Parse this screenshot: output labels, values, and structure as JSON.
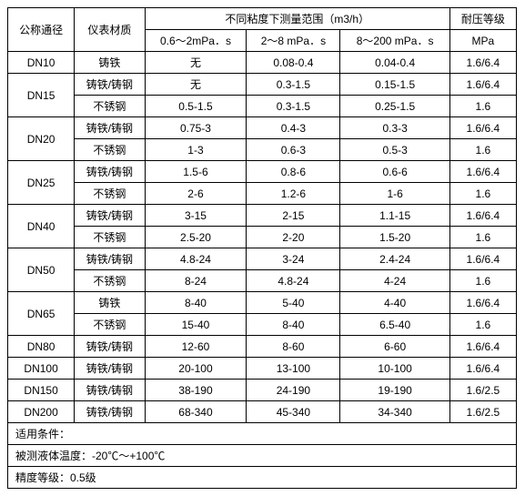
{
  "headers": {
    "col1": "公称通径",
    "col2": "仪表材质",
    "col3_group": "不同粘度下测量范围（m3/h）",
    "col3a": "0.6～2mPa．s",
    "col3b": "2～8 mPa．s",
    "col3c": "8～200 mPa．s",
    "col4": "耐压等级",
    "col4_unit": "MPa"
  },
  "rows": [
    {
      "dn": "DN10",
      "rowspan": 1,
      "mat": "铸铁",
      "v1": "无",
      "v2": "0.08-0.4",
      "v3": "0.04-0.4",
      "p": "1.6/6.4"
    },
    {
      "dn": "DN15",
      "rowspan": 2,
      "mat": "铸铁/铸钢",
      "v1": "无",
      "v2": "0.3-1.5",
      "v3": "0.15-1.5",
      "p": "1.6/6.4"
    },
    {
      "dn": null,
      "mat": "不锈钢",
      "v1": "0.5-1.5",
      "v2": "0.3-1.5",
      "v3": "0.25-1.5",
      "p": "1.6"
    },
    {
      "dn": "DN20",
      "rowspan": 2,
      "mat": "铸铁/铸钢",
      "v1": "0.75-3",
      "v2": "0.4-3",
      "v3": "0.3-3",
      "p": "1.6/6.4"
    },
    {
      "dn": null,
      "mat": "不锈钢",
      "v1": "1-3",
      "v2": "0.6-3",
      "v3": "0.5-3",
      "p": "1.6"
    },
    {
      "dn": "DN25",
      "rowspan": 2,
      "mat": "铸铁/铸钢",
      "v1": "1.5-6",
      "v2": "0.8-6",
      "v3": "0.6-6",
      "p": "1.6/6.4"
    },
    {
      "dn": null,
      "mat": "不锈钢",
      "v1": "2-6",
      "v2": "1.2-6",
      "v3": "1-6",
      "p": "1.6"
    },
    {
      "dn": "DN40",
      "rowspan": 2,
      "mat": "铸铁/铸钢",
      "v1": "3-15",
      "v2": "2-15",
      "v3": "1.1-15",
      "p": "1.6/6.4"
    },
    {
      "dn": null,
      "mat": "不锈钢",
      "v1": "2.5-20",
      "v2": "2-20",
      "v3": "1.5-20",
      "p": "1.6"
    },
    {
      "dn": "DN50",
      "rowspan": 2,
      "mat": "铸铁/铸钢",
      "v1": "4.8-24",
      "v2": "3-24",
      "v3": "2.4-24",
      "p": "1.6/6.4"
    },
    {
      "dn": null,
      "mat": "不锈钢",
      "v1": "8-24",
      "v2": "4.8-24",
      "v3": "4-24",
      "p": "1.6"
    },
    {
      "dn": "DN65",
      "rowspan": 2,
      "mat": "铸铁",
      "v1": "8-40",
      "v2": "5-40",
      "v3": "4-40",
      "p": "1.6/6.4"
    },
    {
      "dn": null,
      "mat": "不锈钢",
      "v1": "15-40",
      "v2": "8-40",
      "v3": "6.5-40",
      "p": "1.6"
    },
    {
      "dn": "DN80",
      "rowspan": 1,
      "mat": "铸铁/铸钢",
      "v1": "12-60",
      "v2": "8-60",
      "v3": "6-60",
      "p": "1.6/6.4"
    },
    {
      "dn": "DN100",
      "rowspan": 1,
      "mat": "铸铁/铸钢",
      "v1": "20-100",
      "v2": "13-100",
      "v3": "10-100",
      "p": "1.6/6.4"
    },
    {
      "dn": "DN150",
      "rowspan": 1,
      "mat": "铸铁/铸钢",
      "v1": "38-190",
      "v2": "24-190",
      "v3": "19-190",
      "p": "1.6/2.5"
    },
    {
      "dn": "DN200",
      "rowspan": 1,
      "mat": "铸铁/铸钢",
      "v1": "68-340",
      "v2": "45-340",
      "v3": "34-340",
      "p": "1.6/2.5"
    }
  ],
  "footer": {
    "line1": "适用条件：",
    "line2": "被测液体温度：-20℃～+100℃",
    "line3": "精度等级：0.5级"
  }
}
